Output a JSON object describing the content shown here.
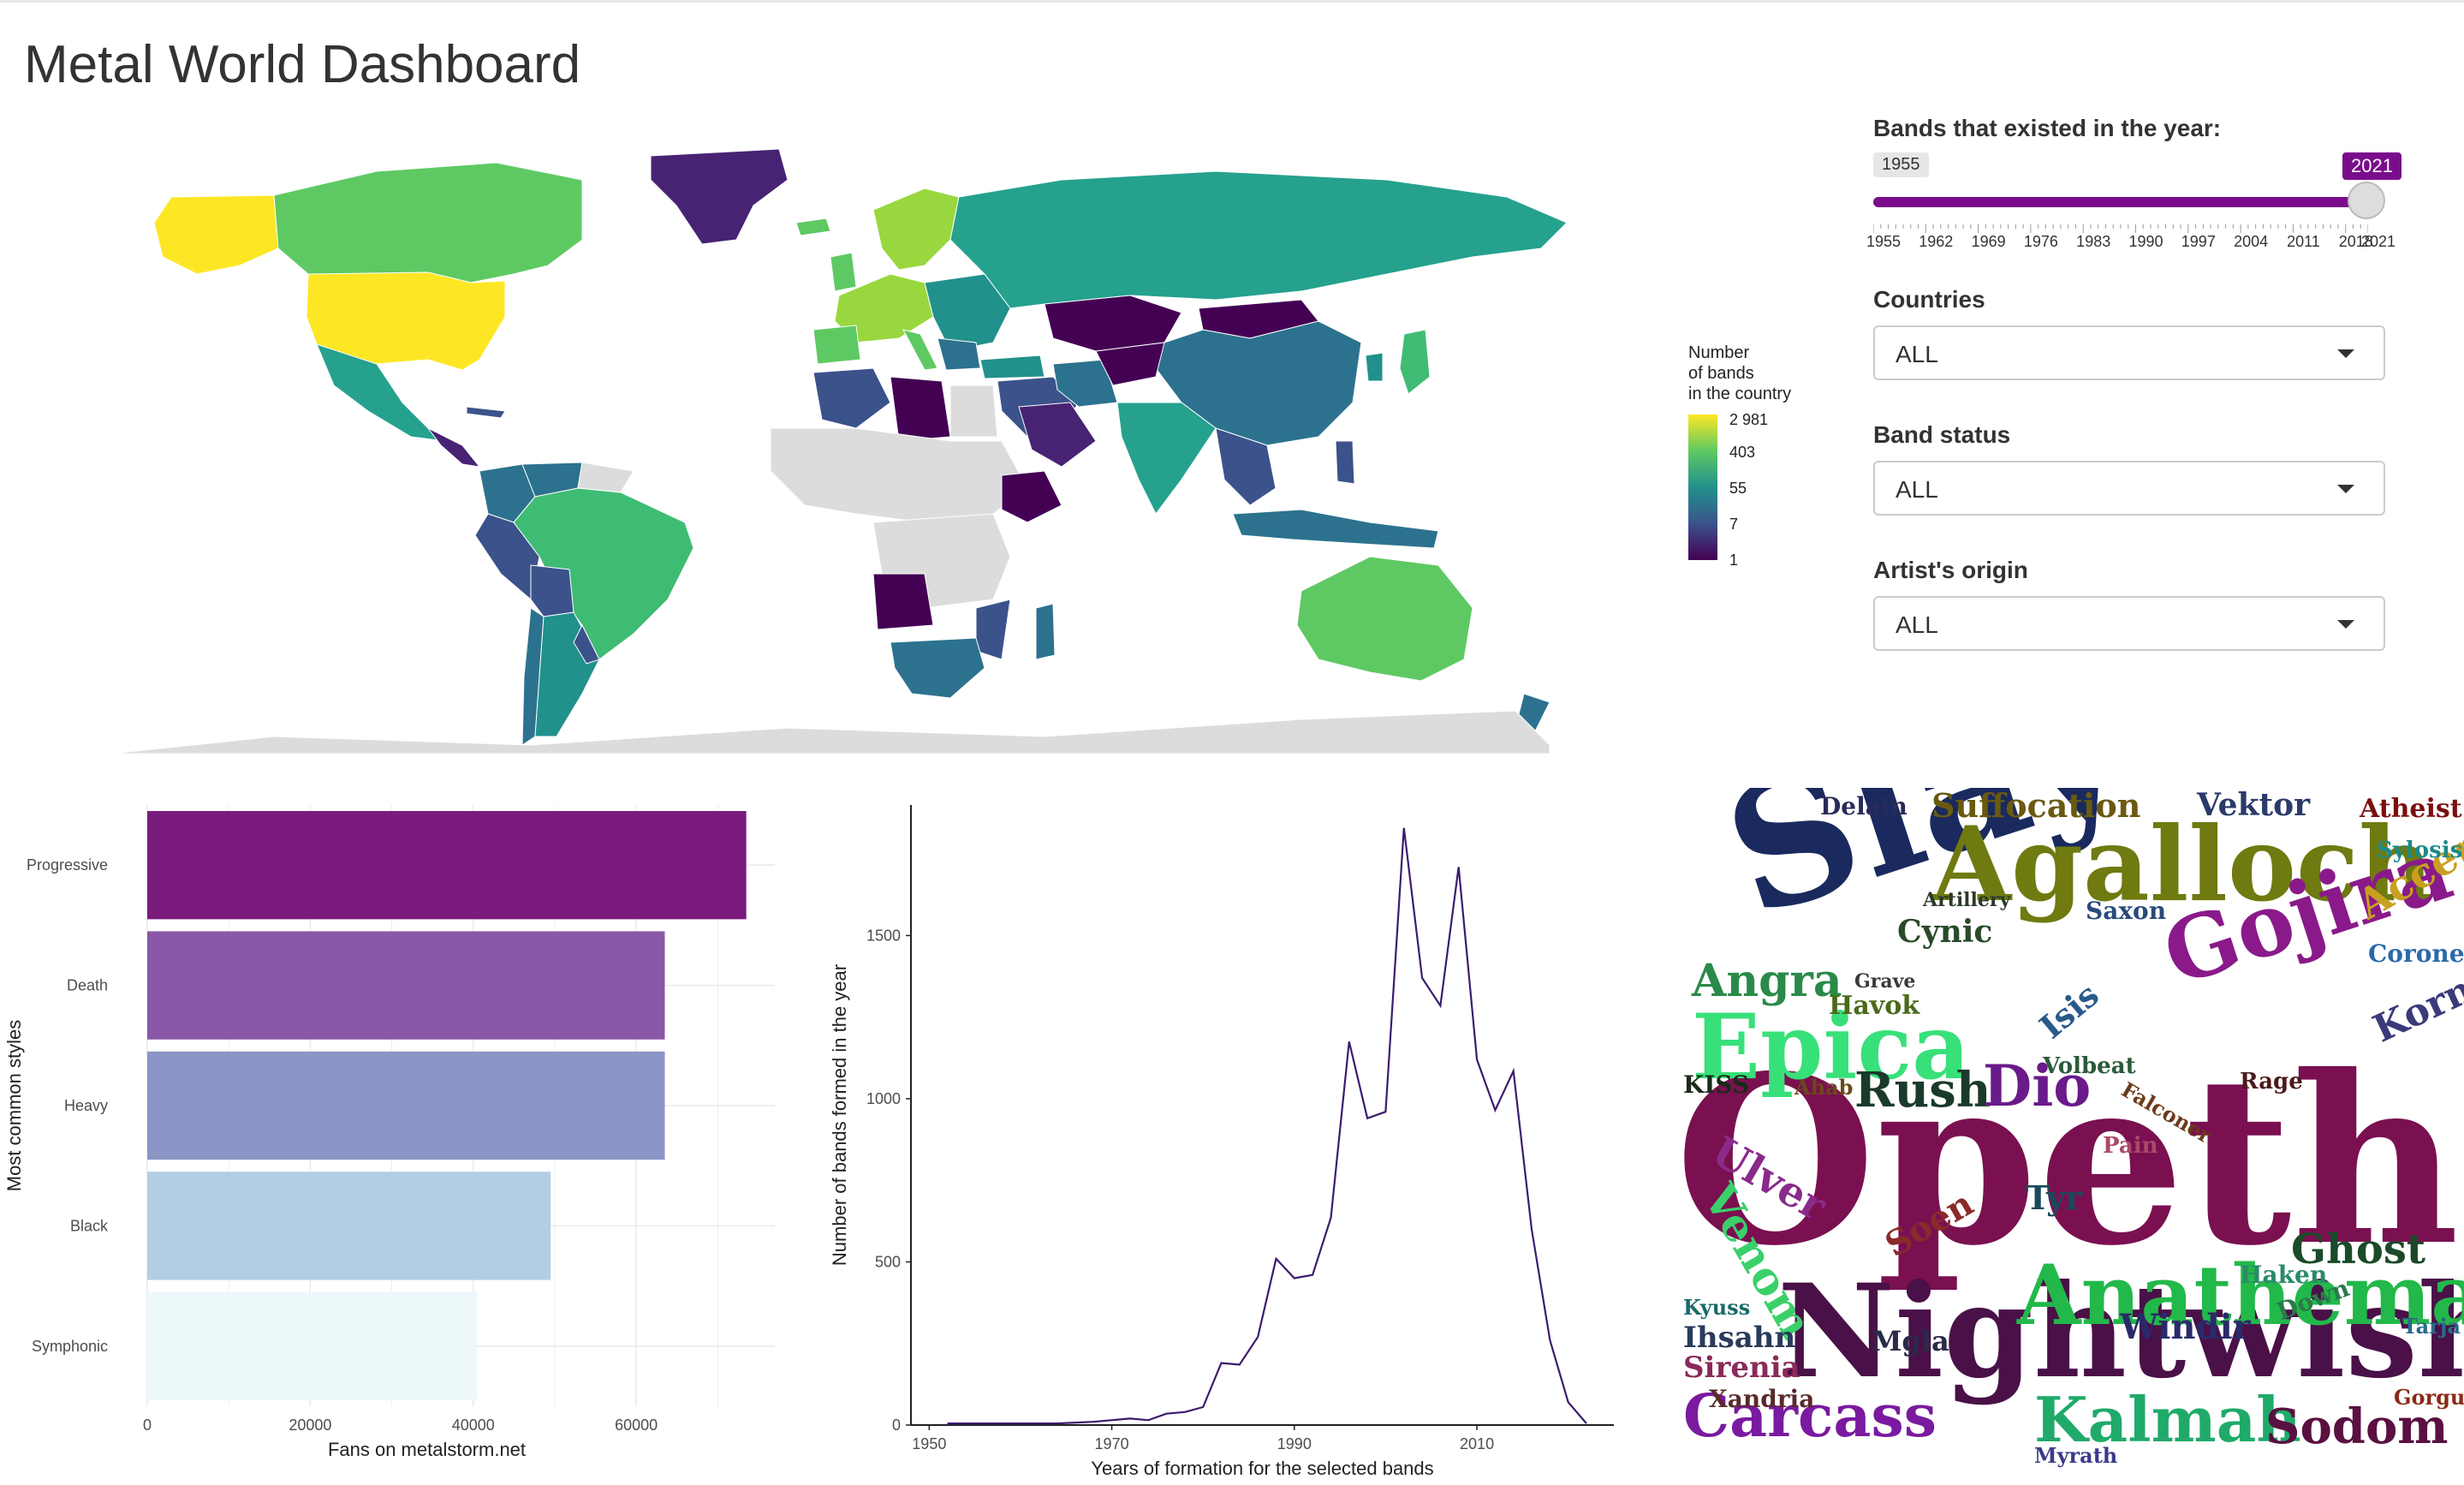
{
  "page": {
    "title": "Metal World Dashboard"
  },
  "map": {
    "legend": {
      "title_lines": [
        "Number",
        "of bands",
        "in the country"
      ],
      "ticks": [
        "2 981",
        "403",
        "55",
        "7",
        "1"
      ]
    },
    "colors": {
      "high": "#fde725",
      "upper": "#5ec962",
      "mid": "#21918c",
      "low": "#3b528b",
      "lowest": "#440154",
      "nodata": "#dcdcdc"
    }
  },
  "controls": {
    "year_slider": {
      "label": "Bands that existed in the year:",
      "min": 1955,
      "max": 2021,
      "selected_min": "1955",
      "selected_max": "2021",
      "ticks": [
        "1955",
        "1962",
        "1969",
        "1976",
        "1983",
        "1990",
        "1997",
        "2004",
        "2011",
        "2018",
        "2021"
      ]
    },
    "countries": {
      "label": "Countries",
      "value": "ALL"
    },
    "band_status": {
      "label": "Band status",
      "value": "ALL"
    },
    "artist_origin": {
      "label": "Artist's origin",
      "value": "ALL"
    }
  },
  "chart_data": [
    {
      "type": "bar",
      "orientation": "horizontal",
      "categories": [
        "Progressive",
        "Death",
        "Heavy",
        "Black",
        "Symphonic"
      ],
      "values": [
        73500,
        63500,
        63500,
        49500,
        40500
      ],
      "colors": [
        "#7b1b7e",
        "#8a57a9",
        "#8b96c6",
        "#b3cde3",
        "#edf8fb"
      ],
      "xlabel": "Fans on metalstorm.net",
      "ylabel": "Most common styles",
      "xlim": [
        0,
        77000
      ],
      "xticks": [
        0,
        20000,
        40000,
        60000
      ],
      "grid": true
    },
    {
      "type": "line",
      "x": [
        1952,
        1956,
        1960,
        1964,
        1968,
        1972,
        1974,
        1976,
        1978,
        1980,
        1982,
        1984,
        1986,
        1988,
        1990,
        1992,
        1994,
        1996,
        1998,
        2000,
        2002,
        2004,
        2006,
        2008,
        2010,
        2012,
        2014,
        2016,
        2018,
        2020,
        2022
      ],
      "values": [
        5,
        5,
        5,
        5,
        10,
        20,
        15,
        35,
        40,
        55,
        190,
        185,
        270,
        510,
        450,
        460,
        635,
        1175,
        940,
        960,
        1830,
        1370,
        1285,
        1710,
        1120,
        965,
        1085,
        600,
        260,
        70,
        5
      ],
      "color": "#3b1c6e",
      "xlabel": "Years of formation for the selected bands",
      "ylabel": "Number of bands formed in the year",
      "xlim": [
        1948,
        2025
      ],
      "ylim": [
        0,
        1900
      ],
      "xticks": [
        1950,
        1970,
        1990,
        2010
      ],
      "yticks": [
        0,
        500,
        1000,
        1500
      ]
    }
  ],
  "wordcloud": {
    "words": [
      {
        "t": "Opeth",
        "c": "#7a1050"
      },
      {
        "t": "Slayer",
        "c": "#1a2a5e"
      },
      {
        "t": "Agalloch",
        "c": "#6f7a10"
      },
      {
        "t": "Nightwish",
        "c": "#4a1048"
      },
      {
        "t": "Epica",
        "c": "#38e07a"
      },
      {
        "t": "Gojira",
        "c": "#8a1a8a"
      },
      {
        "t": "Anathema",
        "c": "#22b84a"
      },
      {
        "t": "Kalmah",
        "c": "#1faa6a"
      },
      {
        "t": "Carcass",
        "c": "#7a1aa0"
      },
      {
        "t": "Sodom",
        "c": "#5a1040"
      },
      {
        "t": "Rush",
        "c": "#1a3a2a"
      },
      {
        "t": "Dio",
        "c": "#6a1a8a"
      },
      {
        "t": "Suffocation",
        "c": "#6a5a10"
      },
      {
        "t": "Vektor",
        "c": "#2a3a6a"
      },
      {
        "t": "Atheist",
        "c": "#7a1010"
      },
      {
        "t": "Accept",
        "c": "#c8a020"
      },
      {
        "t": "Korn",
        "c": "#3a3a7a"
      },
      {
        "t": "Ghost",
        "c": "#1a4a2a"
      },
      {
        "t": "Venom",
        "c": "#3ad06a"
      },
      {
        "t": "Ulver",
        "c": "#8a2a8a"
      },
      {
        "t": "Windir",
        "c": "#2a2a6a"
      },
      {
        "t": "Ihsahn",
        "c": "#2a3a5a"
      },
      {
        "t": "Sirenia",
        "c": "#8a2a5a"
      },
      {
        "t": "Xandria",
        "c": "#5a2a2a"
      },
      {
        "t": "Mgla",
        "c": "#2a2a4a"
      },
      {
        "t": "Angra",
        "c": "#2a8a4a"
      },
      {
        "t": "Cynic",
        "c": "#2a4a2a"
      },
      {
        "t": "Delain",
        "c": "#2a2a5a"
      },
      {
        "t": "Saxon",
        "c": "#2a4a7a"
      },
      {
        "t": "Soen",
        "c": "#8a2a2a"
      },
      {
        "t": "Tyr",
        "c": "#1a4a5a"
      },
      {
        "t": "Havok",
        "c": "#4a6a1a"
      },
      {
        "t": "Isis",
        "c": "#2a5a8a"
      },
      {
        "t": "Volbeat",
        "c": "#2a5a3a"
      },
      {
        "t": "KISS",
        "c": "#1a2a1a"
      },
      {
        "t": "Ahab",
        "c": "#6a4a1a"
      },
      {
        "t": "Rage",
        "c": "#4a1a1a"
      },
      {
        "t": "Coroner",
        "c": "#2a6aaa"
      },
      {
        "t": "Sylosis",
        "c": "#1a8a8a"
      },
      {
        "t": "Tarja",
        "c": "#2a6a8a"
      },
      {
        "t": "Gorguts",
        "c": "#8a2a1a"
      },
      {
        "t": "Myrath",
        "c": "#3a3a8a"
      },
      {
        "t": "Kyuss",
        "c": "#1a6a6a"
      },
      {
        "t": "Down",
        "c": "#2a7a4a"
      },
      {
        "t": "Pain",
        "c": "#aa4a6a"
      },
      {
        "t": "Haken",
        "c": "#2a8a6a"
      },
      {
        "t": "Grave",
        "c": "#3a3a3a"
      },
      {
        "t": "Artillery",
        "c": "#2a3a2a"
      },
      {
        "t": "Falconer",
        "c": "#6a3a1a"
      }
    ]
  }
}
